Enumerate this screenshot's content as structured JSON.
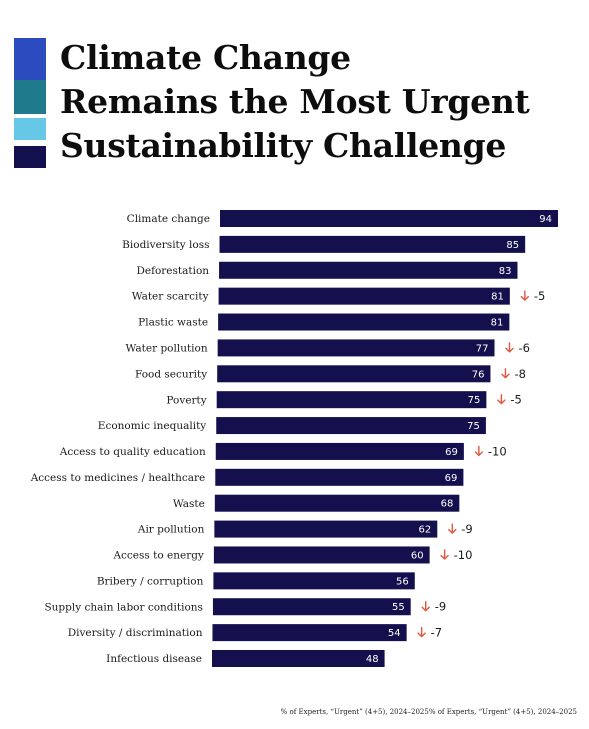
{
  "title": {
    "lines": [
      "Climate Change",
      "Remains the Most Urgent",
      "Sustainability Challenge"
    ]
  },
  "legend_colors": [
    "#2b4bbf",
    "#1f7a8c",
    "#66c7e6",
    "#14104e"
  ],
  "footnote": "% of Experts, “Urgent” (4+5), 2024–2025% of Experts, “Urgent” (4+5), 2024–2025",
  "chart_data": {
    "type": "bar",
    "orientation": "horizontal",
    "bar_color": "#14104e",
    "change_arrow_color": "#e4573d",
    "categories": [
      "Climate change",
      "Biodiversity loss",
      "Deforestation",
      "Water scarcity",
      "Plastic waste",
      "Water pollution",
      "Food security",
      "Poverty",
      "Economic inequality",
      "Access to quality education",
      "Access to medicines / healthcare",
      "Waste",
      "Air pollution",
      "Access to energy",
      "Bribery / corruption",
      "Supply chain labor conditions",
      "Diversity / discrimination",
      "Infectious disease"
    ],
    "values": [
      94,
      85,
      83,
      81,
      81,
      77,
      76,
      75,
      75,
      69,
      69,
      68,
      62,
      60,
      56,
      55,
      54,
      48
    ],
    "changes": [
      null,
      null,
      null,
      -5,
      null,
      -6,
      -8,
      -5,
      null,
      -10,
      null,
      null,
      -9,
      -10,
      null,
      -9,
      -7,
      null
    ],
    "xlim": [
      0,
      100
    ]
  }
}
